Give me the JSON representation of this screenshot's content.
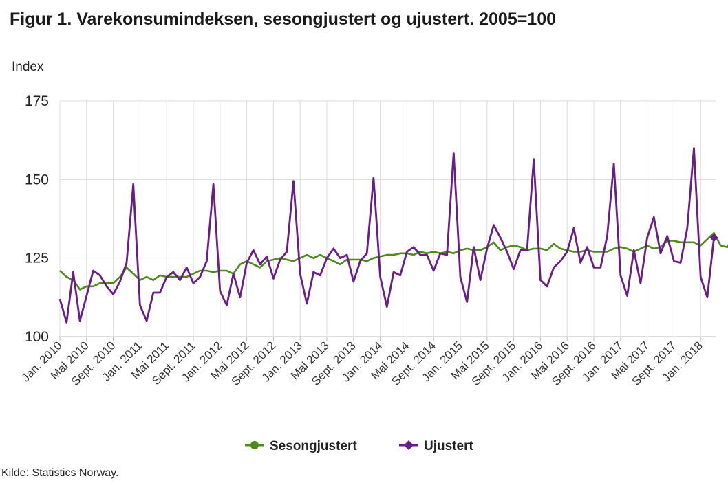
{
  "title": "Figur 1. Varekonsumindeksen, sesongjustert og ujustert. 2005=100",
  "source": "Kilde: Statistics Norway.",
  "colors": {
    "sesongjustert": "#4d8a19",
    "ujustert": "#6a1b8c"
  },
  "chart_data": {
    "type": "line",
    "ylabel": "Index",
    "xlabel": "",
    "ylim": [
      100,
      175
    ],
    "yticks": [
      100,
      125,
      150,
      175
    ],
    "grid": true,
    "legend_position": "bottom-center",
    "x_tick_labels": [
      "Jan. 2010",
      "Mai 2010",
      "Sept. 2010",
      "Jan. 2011",
      "Mai 2011",
      "Sept. 2011",
      "Jan. 2012",
      "Mai 2012",
      "Sept. 2012",
      "Jan. 2013",
      "Mai 2013",
      "Sept. 2013",
      "Jan. 2014",
      "Mai 2014",
      "Sept. 2014",
      "Jan. 2015",
      "Mai 2015",
      "Sept. 2015",
      "Jan. 2016",
      "Mai 2016",
      "Sept. 2016",
      "Jan. 2017",
      "Mai 2017",
      "Sept. 2017",
      "Jan. 2018"
    ],
    "x_start": "2010-01",
    "series": [
      {
        "name": "Sesongjustert",
        "color": "#4d8a19",
        "marker": "circle",
        "values": [
          121,
          119,
          118,
          115,
          116,
          116,
          117,
          117,
          117,
          119,
          122,
          120,
          118,
          119,
          118,
          119.5,
          119,
          119,
          119,
          119,
          120,
          121,
          121,
          120.5,
          121,
          121,
          120,
          123,
          124,
          123,
          122,
          124,
          124.5,
          125,
          124.5,
          124,
          125,
          126,
          125,
          126,
          125,
          124,
          123,
          124.5,
          124.5,
          124.5,
          124,
          125,
          125.5,
          126,
          126,
          126.5,
          126.5,
          126,
          127,
          126.5,
          127,
          126.5,
          127,
          126.5,
          127.5,
          128,
          127.5,
          127.5,
          128.5,
          130,
          127.5,
          128.5,
          129,
          128.5,
          127.5,
          128,
          128,
          127.5,
          129.5,
          128,
          127.5,
          127,
          127,
          127.5,
          127,
          127,
          127,
          128,
          128.5,
          128,
          127,
          128,
          129,
          128,
          128.5,
          130.5,
          130.5,
          130,
          130,
          130,
          129,
          131,
          133,
          129,
          128.5,
          132
        ]
      },
      {
        "name": "Ujustert",
        "color": "#6a1b8c",
        "marker": "diamond",
        "values": [
          112,
          104.5,
          120.5,
          105,
          113,
          121,
          119.5,
          116,
          113.5,
          117.5,
          123.5,
          148.5,
          110,
          105,
          114,
          114,
          119,
          120.5,
          118,
          122,
          117,
          119,
          124,
          148.5,
          114.5,
          110,
          120,
          112.5,
          123.5,
          127.5,
          123,
          125.5,
          118.5,
          124.5,
          127,
          149.5,
          120,
          110.5,
          120.5,
          119.5,
          125,
          128,
          125,
          126,
          117.5,
          124,
          126.5,
          150.5,
          119,
          109.5,
          120.5,
          119.5,
          127,
          128.5,
          126,
          126,
          121,
          126.5,
          126,
          158.5,
          119,
          111,
          128.5,
          118,
          128,
          135.5,
          131.5,
          127,
          121.5,
          127.5,
          127.5,
          156.5,
          118,
          116,
          122,
          124,
          127,
          134.5,
          123.5,
          128.5,
          122,
          122,
          132,
          155,
          119.5,
          113,
          127.5,
          117,
          131.5,
          138,
          126.5,
          132,
          124,
          123.5,
          134.5,
          160,
          119,
          112.5,
          131.5
        ]
      }
    ]
  }
}
